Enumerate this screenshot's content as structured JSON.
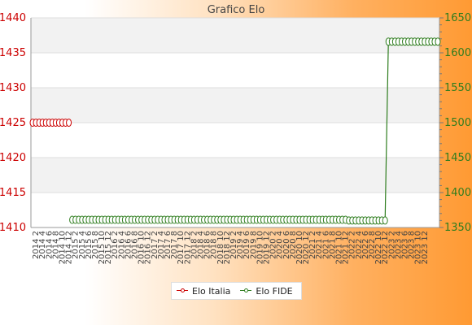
{
  "chart_data": {
    "type": "line",
    "title": "Grafico Elo",
    "left_axis": {
      "ylim": [
        1410,
        1440
      ],
      "ticks": [
        1410,
        1415,
        1420,
        1425,
        1430,
        1435,
        1440
      ],
      "tick_labels": [
        "1410",
        "1415",
        "1420",
        "1425",
        "1430",
        "1435",
        "1440"
      ],
      "color": "#cc0000"
    },
    "right_axis": {
      "ylim": [
        1350,
        1650
      ],
      "ticks": [
        1350,
        1400,
        1450,
        1500,
        1550,
        1600,
        1650
      ],
      "tick_labels": [
        "1350",
        "1400",
        "1450",
        "1500",
        "1550",
        "1600",
        "1650"
      ],
      "color": "#2e7d1e"
    },
    "x_labels_visible": [
      "2014 2",
      "2014 4",
      "2014 6",
      "2014 8",
      "2014 10",
      "2014 12",
      "2015 2",
      "2015 4",
      "2015 6",
      "2015 8",
      "2015 10",
      "2015 12",
      "2016 2",
      "2016 4",
      "2016 6",
      "2016 8",
      "2016 10",
      "2016 12",
      "2017 2",
      "2017 4",
      "2017 6",
      "2017 8",
      "2017 10",
      "2017 12",
      "2018 2",
      "2018 4",
      "2018 6",
      "2018 8",
      "2018 10",
      "2018 12",
      "2019 2",
      "2019 4",
      "2019 6",
      "2019 8",
      "2019 10",
      "2019 12",
      "2020 2",
      "2020 4",
      "2020 6",
      "2020 8",
      "2020 10",
      "2020 12",
      "2021 2",
      "2021 4",
      "2021 6",
      "2021 8",
      "2021 10",
      "2021 12",
      "2022 2",
      "2022 4",
      "2022 6",
      "2022 8",
      "2022 10",
      "2022 12",
      "2023 2",
      "2023 4",
      "2023 6",
      "2023 8",
      "2023 10",
      "2023 12"
    ],
    "series": [
      {
        "name": "Elo Italia",
        "axis": "left",
        "color": "#cc0000",
        "segments": [
          {
            "start": "2014 1",
            "end": "2014 12",
            "value": 1425
          }
        ]
      },
      {
        "name": "Elo FIDE",
        "axis": "right",
        "color": "#2e7d1e",
        "segments": [
          {
            "start": "2015 1",
            "end": "2021 12",
            "value": 1361
          },
          {
            "start": "2022 1",
            "end": "2022 12",
            "value": 1360
          },
          {
            "start": "2023 1",
            "end": "2024 4",
            "value": 1616
          }
        ]
      }
    ],
    "grid": true,
    "legend_position": "bottom-center"
  },
  "legend": {
    "items": [
      {
        "label": "Elo Italia",
        "color": "#cc0000"
      },
      {
        "label": "Elo FIDE",
        "color": "#2e7d1e"
      }
    ]
  }
}
